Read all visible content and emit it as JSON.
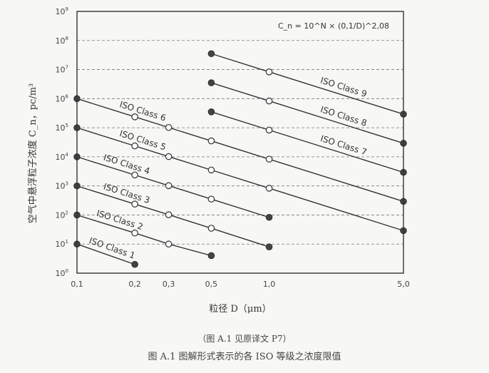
{
  "chart_data": {
    "type": "line",
    "formula": "C_n = 10^N × (0,1/D)^2,08",
    "xlabel": "粒径 D（μm）",
    "ylabel": "空气中悬浮粒子浓度 C_n，pc/m³",
    "x_scale": "log",
    "y_scale": "log",
    "xlim": [
      0.1,
      5.0
    ],
    "ylim": [
      1,
      1000000000
    ],
    "grid": "horizontal dashed",
    "x_ticks": [
      "0,1",
      "0,2",
      "0,3",
      "0,5",
      "1,0",
      "5,0"
    ],
    "x_tick_values": [
      0.1,
      0.2,
      0.3,
      0.5,
      1.0,
      5.0
    ],
    "y_tick_exponents": [
      0,
      1,
      2,
      3,
      4,
      5,
      6,
      7,
      8,
      9
    ],
    "series": [
      {
        "name": "ISO Class 1",
        "points": [
          {
            "x": 0.1,
            "y": 10
          },
          {
            "x": 0.2,
            "y": 2
          }
        ]
      },
      {
        "name": "ISO Class 2",
        "points": [
          {
            "x": 0.1,
            "y": 100
          },
          {
            "x": 0.2,
            "y": 24
          },
          {
            "x": 0.3,
            "y": 10
          },
          {
            "x": 0.5,
            "y": 4
          }
        ]
      },
      {
        "name": "ISO Class 3",
        "points": [
          {
            "x": 0.1,
            "y": 1000
          },
          {
            "x": 0.2,
            "y": 237
          },
          {
            "x": 0.3,
            "y": 102
          },
          {
            "x": 0.5,
            "y": 35
          },
          {
            "x": 1.0,
            "y": 8
          }
        ]
      },
      {
        "name": "ISO Class 4",
        "points": [
          {
            "x": 0.1,
            "y": 10000
          },
          {
            "x": 0.2,
            "y": 2370
          },
          {
            "x": 0.3,
            "y": 1020
          },
          {
            "x": 0.5,
            "y": 352
          },
          {
            "x": 1.0,
            "y": 83
          }
        ]
      },
      {
        "name": "ISO Class 5",
        "points": [
          {
            "x": 0.1,
            "y": 100000
          },
          {
            "x": 0.2,
            "y": 23700
          },
          {
            "x": 0.3,
            "y": 10200
          },
          {
            "x": 0.5,
            "y": 3520
          },
          {
            "x": 1.0,
            "y": 832
          },
          {
            "x": 5.0,
            "y": 29
          }
        ]
      },
      {
        "name": "ISO Class 6",
        "points": [
          {
            "x": 0.1,
            "y": 1000000
          },
          {
            "x": 0.2,
            "y": 237000
          },
          {
            "x": 0.3,
            "y": 102000
          },
          {
            "x": 0.5,
            "y": 35200
          },
          {
            "x": 1.0,
            "y": 8320
          },
          {
            "x": 5.0,
            "y": 293
          }
        ]
      },
      {
        "name": "ISO Class 7",
        "points": [
          {
            "x": 0.5,
            "y": 352000
          },
          {
            "x": 1.0,
            "y": 83200
          },
          {
            "x": 5.0,
            "y": 2930
          }
        ]
      },
      {
        "name": "ISO Class 8",
        "points": [
          {
            "x": 0.5,
            "y": 3520000
          },
          {
            "x": 1.0,
            "y": 832000
          },
          {
            "x": 5.0,
            "y": 29300
          }
        ]
      },
      {
        "name": "ISO Class 9",
        "points": [
          {
            "x": 0.5,
            "y": 35200000
          },
          {
            "x": 1.0,
            "y": 8320000
          },
          {
            "x": 5.0,
            "y": 293000
          }
        ]
      }
    ]
  },
  "captions": {
    "line1": "（图 A.1 见原译文 P7）",
    "line2": "图 A.1  图解形式表示的各 ISO 等级之浓度限值"
  }
}
